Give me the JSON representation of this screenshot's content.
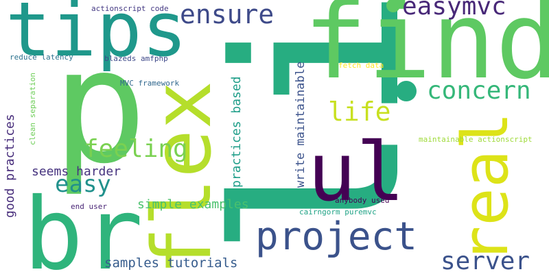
{
  "words": [
    {
      "text": "li",
      "color": "#27ad81"
    },
    {
      "text": "p",
      "color": "#5ec962"
    },
    {
      "text": "br",
      "color": "#2fb47c"
    },
    {
      "text": "find",
      "color": "#5ec962"
    },
    {
      "text": "flex",
      "color": "#b5de2b"
    },
    {
      "text": "tips",
      "color": "#1f988b"
    },
    {
      "text": "ul",
      "color": "#440154"
    },
    {
      "text": "real",
      "color": "#dde318"
    },
    {
      "text": "project",
      "color": "#3b528b"
    },
    {
      "text": "ensure",
      "color": "#3e4a89"
    },
    {
      "text": "easymvc",
      "color": "#482878"
    },
    {
      "text": "concern",
      "color": "#35b779"
    },
    {
      "text": "server",
      "color": "#3b528b"
    },
    {
      "text": "life",
      "color": "#c8e020"
    },
    {
      "text": "feeling",
      "color": "#7ad151"
    },
    {
      "text": "easy",
      "color": "#21918c"
    },
    {
      "text": "practices based",
      "color": "#1f9e89"
    },
    {
      "text": "write maintainable",
      "color": "#3b528b"
    },
    {
      "text": "good practices",
      "color": "#472d7b"
    },
    {
      "text": "seems harder",
      "color": "#46337f"
    },
    {
      "text": "simple examples",
      "color": "#4ac16d"
    },
    {
      "text": "samples tutorials",
      "color": "#365c8d"
    },
    {
      "text": "actionscript code",
      "color": "#443983"
    },
    {
      "text": "reduce latency",
      "color": "#2c728e"
    },
    {
      "text": "blazeds amfphp",
      "color": "#3e4989"
    },
    {
      "text": "MVC framework",
      "color": "#31688e"
    },
    {
      "text": "clean separation",
      "color": "#6ece58"
    },
    {
      "text": "fetch data",
      "color": "#fde725"
    },
    {
      "text": "maintainable actionscript",
      "color": "#9fda3a"
    },
    {
      "text": "anybody used",
      "color": "#440154"
    },
    {
      "text": "end user",
      "color": "#482475"
    },
    {
      "text": "cairngorm puremvc",
      "color": "#20a386"
    }
  ]
}
